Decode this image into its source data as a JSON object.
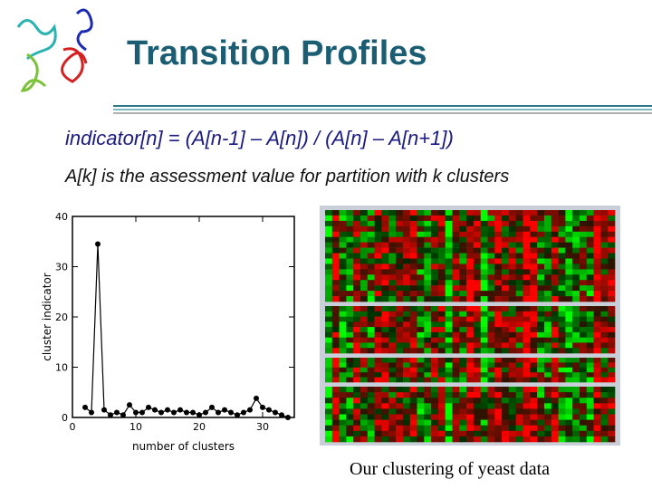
{
  "header": {
    "title": "Transition Profiles"
  },
  "body": {
    "formula": "indicator[n] = (A[n-1] – A[n]) / (A[n] – A[n+1])",
    "definition": "A[k] is the assessment value for partition with k clusters",
    "caption": "Our clustering of yeast data"
  },
  "chart_data": {
    "type": "line",
    "x_label": "number of clusters",
    "y_label": "cluster indicator",
    "x": [
      2,
      3,
      4,
      5,
      6,
      7,
      8,
      9,
      10,
      11,
      12,
      13,
      14,
      15,
      16,
      17,
      18,
      19,
      20,
      21,
      22,
      23,
      24,
      25,
      26,
      27,
      28,
      29,
      30,
      31,
      32,
      33,
      34
    ],
    "series": [
      {
        "color": "#000000",
        "values": [
          2,
          1,
          34.5,
          1.5,
          0.5,
          1,
          0.5,
          2.5,
          1,
          1,
          2,
          1.5,
          1,
          1.5,
          1,
          1.5,
          1,
          1,
          0.5,
          1,
          2,
          1,
          1.5,
          1,
          0.5,
          1,
          1.5,
          3.8,
          2,
          1.5,
          1,
          0.5,
          0
        ]
      }
    ],
    "xlim": [
      0,
      35
    ],
    "ylim": [
      0,
      40
    ],
    "xticks": [
      0,
      10,
      20,
      30
    ],
    "yticks": [
      0,
      10,
      20,
      30,
      40
    ]
  }
}
